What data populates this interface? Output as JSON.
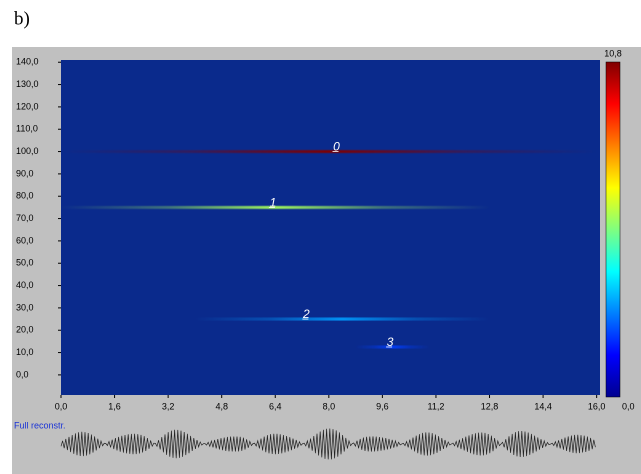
{
  "panel_label": "b)",
  "chart_data": {
    "type": "spectrogram",
    "ylim": [
      -9,
      141
    ],
    "xlim": [
      0,
      16.1
    ],
    "yticks": [
      {
        "value": 0,
        "label": "0,0"
      },
      {
        "value": 10,
        "label": "10,0"
      },
      {
        "value": 20,
        "label": "20,0"
      },
      {
        "value": 30,
        "label": "30,0"
      },
      {
        "value": 40,
        "label": "40,0"
      },
      {
        "value": 50,
        "label": "50,0"
      },
      {
        "value": 60,
        "label": "60,0"
      },
      {
        "value": 70,
        "label": "70,0"
      },
      {
        "value": 80,
        "label": "80,0"
      },
      {
        "value": 90,
        "label": "90,0"
      },
      {
        "value": 100,
        "label": "100,0"
      },
      {
        "value": 110,
        "label": "110,0"
      },
      {
        "value": 120,
        "label": "120,0"
      },
      {
        "value": 130,
        "label": "130,0"
      },
      {
        "value": 140,
        "label": "140,0"
      }
    ],
    "xticks": [
      {
        "value": 0,
        "label": "0,0"
      },
      {
        "value": 1.6,
        "label": "1,6"
      },
      {
        "value": 3.2,
        "label": "3,2"
      },
      {
        "value": 4.8,
        "label": "4,8"
      },
      {
        "value": 6.4,
        "label": "6,4"
      },
      {
        "value": 8,
        "label": "8,0"
      },
      {
        "value": 9.6,
        "label": "9,6"
      },
      {
        "value": 11.2,
        "label": "11,2"
      },
      {
        "value": 12.8,
        "label": "12,8"
      },
      {
        "value": 14.4,
        "label": "14,4"
      },
      {
        "value": 16,
        "label": "16,0"
      }
    ],
    "colorbar": {
      "min": {
        "value": 0,
        "label": "0,0"
      },
      "max": {
        "value": 10.8,
        "label": "10,8"
      },
      "colormap": "jet"
    },
    "background": "#0a2a8c",
    "components": [
      {
        "label": "0",
        "freq": 100,
        "start": 0,
        "end": 16,
        "peak": 10.8,
        "marker_x": 8.2
      },
      {
        "label": "1",
        "freq": 75,
        "start": 0,
        "end": 12.8,
        "peak": 5.8,
        "marker_x": 6.3
      },
      {
        "label": "2",
        "freq": 25,
        "start": 4,
        "end": 12.8,
        "peak": 3,
        "marker_x": 7.3
      },
      {
        "label": "3",
        "freq": 12.5,
        "start": 8.8,
        "end": 11,
        "peak": 2,
        "marker_x": 9.8
      }
    ],
    "reconstruction_label": "Full reconstr."
  }
}
